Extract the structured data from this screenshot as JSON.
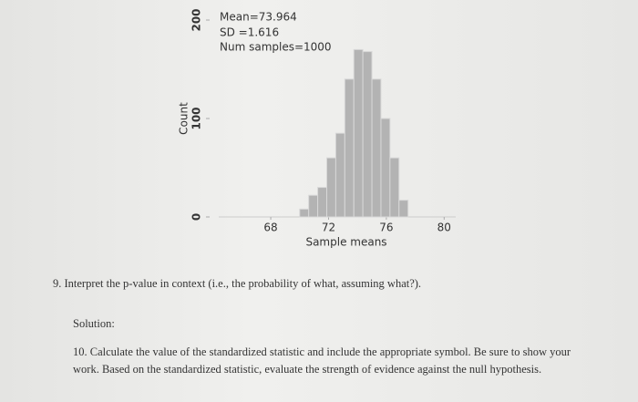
{
  "chart_data": {
    "type": "histogram",
    "annotations": [
      "Mean=73.964",
      "SD =1.616",
      "Num samples=1000"
    ],
    "xlabel": "Sample means",
    "ylabel": "Count",
    "bins": [
      70,
      70.625,
      71.25,
      71.875,
      72.5,
      73.125,
      73.75,
      74.375,
      75,
      75.625,
      76.25,
      76.875,
      77.5
    ],
    "counts": [
      8,
      22,
      30,
      60,
      85,
      140,
      170,
      168,
      140,
      100,
      60,
      17
    ],
    "color": "#b3b3b3",
    "xlim": [
      64.4,
      80.8
    ],
    "xticks": [
      68,
      72,
      76,
      80
    ],
    "ylim": [
      0,
      200
    ],
    "yticks": [
      0,
      100,
      200
    ]
  },
  "questions": {
    "q9": "9. Interpret the p-value in context (i.e., the probability of what, assuming what?).",
    "solution": "Solution:",
    "q10": "10. Calculate the value of the standardized statistic and include the appropriate symbol. Be sure to show your work. Based on the standardized statistic, evaluate the strength of evidence against the null hypothesis."
  }
}
